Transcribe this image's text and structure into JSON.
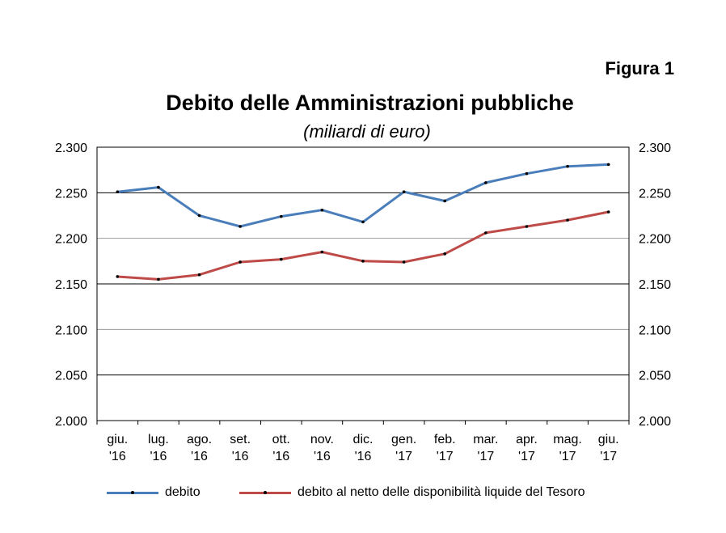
{
  "figure_label": "Figura 1",
  "chart_data": {
    "type": "line",
    "title": "Debito delle Amministrazioni pubbliche",
    "subtitle": "(miliardi di euro)",
    "categories": [
      [
        "giu.",
        "'16"
      ],
      [
        "lug.",
        "'16"
      ],
      [
        "ago.",
        "'16"
      ],
      [
        "set.",
        "'16"
      ],
      [
        "ott.",
        "'16"
      ],
      [
        "nov.",
        "'16"
      ],
      [
        "dic.",
        "'16"
      ],
      [
        "gen.",
        "'17"
      ],
      [
        "feb.",
        "'17"
      ],
      [
        "mar.",
        "'17"
      ],
      [
        "apr.",
        "'17"
      ],
      [
        "mag.",
        "'17"
      ],
      [
        "giu.",
        "'17"
      ]
    ],
    "ylim": [
      2000,
      2300
    ],
    "yticks": [
      2000,
      2050,
      2100,
      2150,
      2200,
      2250,
      2300
    ],
    "ytick_labels": [
      "2.000",
      "2.050",
      "2.100",
      "2.150",
      "2.200",
      "2.250",
      "2.300"
    ],
    "grid": "horizontal",
    "legend_position": "bottom",
    "series": [
      {
        "name": "debito",
        "color": "#4a7ebb",
        "values": [
          2251,
          2256,
          2225,
          2213,
          2224,
          2231,
          2218,
          2251,
          2241,
          2261,
          2271,
          2279,
          2281
        ]
      },
      {
        "name": "debito al netto delle disponibilità liquide del Tesoro",
        "color": "#be4b48",
        "values": [
          2158,
          2155,
          2160,
          2174,
          2177,
          2185,
          2175,
          2174,
          2183,
          2206,
          2213,
          2220,
          2229
        ]
      }
    ]
  }
}
